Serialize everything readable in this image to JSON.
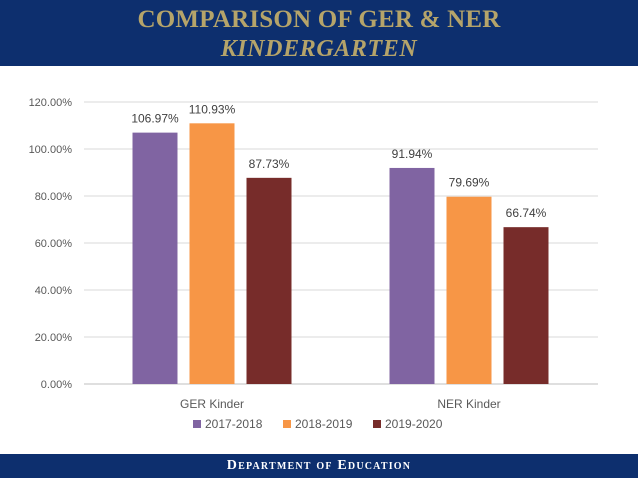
{
  "header": {
    "title_line1": "COMPARISON OF GER & NER",
    "title_line2": "KINDERGARTEN"
  },
  "footer": {
    "text": "Department of Education"
  },
  "chart_data": {
    "type": "bar",
    "categories": [
      "GER Kinder",
      "NER Kinder"
    ],
    "series": [
      {
        "name": "2017-2018",
        "color": "#8064a2",
        "values": [
          106.97,
          91.94
        ],
        "labels": [
          "106.97%",
          "91.94%"
        ]
      },
      {
        "name": "2018-2019",
        "color": "#f79646",
        "values": [
          110.93,
          79.69
        ],
        "labels": [
          "110.93%",
          "79.69%"
        ]
      },
      {
        "name": "2019-2020",
        "color": "#772c2a",
        "values": [
          87.73,
          66.74
        ],
        "labels": [
          "87.73%",
          "66.74%"
        ]
      }
    ],
    "ylim": [
      0,
      120
    ],
    "yticks": [
      0,
      20,
      40,
      60,
      80,
      100,
      120
    ],
    "ytick_labels": [
      "0.00%",
      "20.00%",
      "40.00%",
      "60.00%",
      "80.00%",
      "100.00%",
      "120.00%"
    ],
    "grid": true,
    "legend_position": "bottom"
  }
}
